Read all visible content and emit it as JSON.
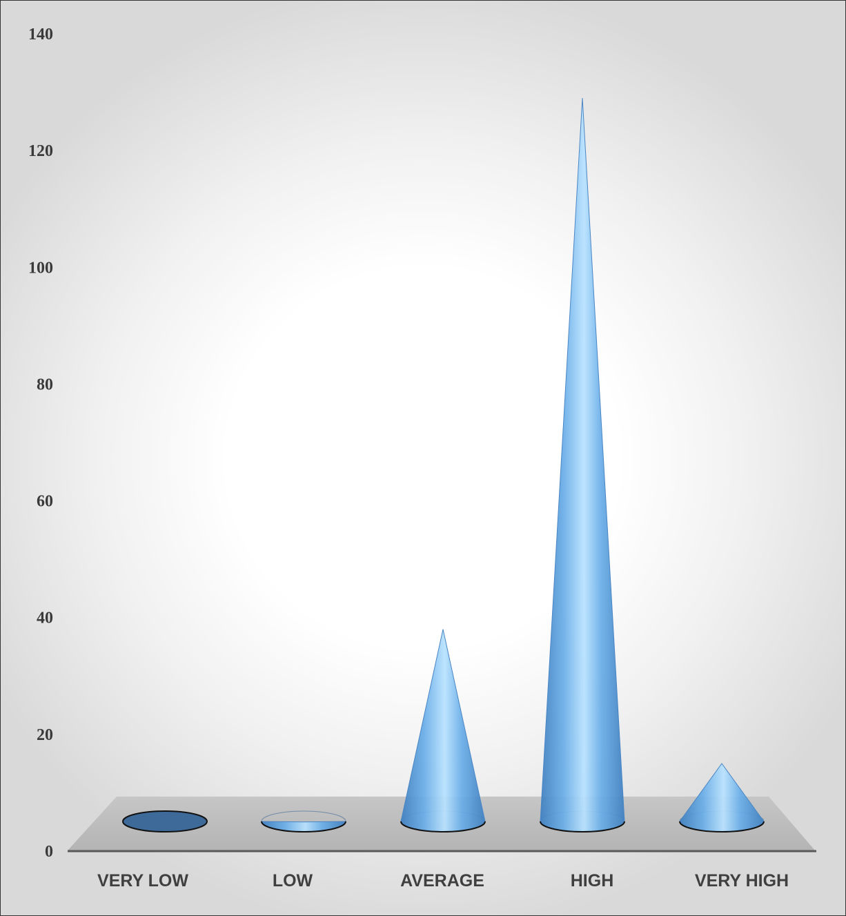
{
  "chart_data": {
    "type": "bar",
    "bar_shape": "cone",
    "categories": [
      "VERY LOW",
      "LOW",
      "AVERAGE",
      "HIGH",
      "VERY HIGH"
    ],
    "values": [
      0,
      5,
      38,
      129,
      15
    ],
    "ylim": [
      0,
      140
    ],
    "y_ticks": [
      "0",
      "20",
      "40",
      "60",
      "80",
      "100",
      "120",
      "140"
    ],
    "title": "",
    "xlabel": "",
    "ylabel": "",
    "grid": false,
    "legend": "none",
    "colors": {
      "cone": "#6aaee8",
      "cone_highlight": "#b8e2ff",
      "cone_shadow": "#3f7fc0",
      "empty_base": "#3e6a99",
      "floor": "#bfbfbf",
      "axis": "#595959",
      "background_center": "#ffffff",
      "background_edge": "#d9d9d9"
    }
  }
}
